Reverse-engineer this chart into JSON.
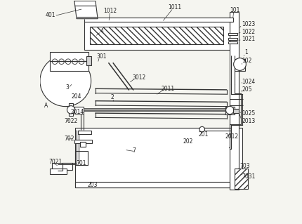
{
  "bg_color": "#f5f5f0",
  "line_color": "#333333",
  "label_color": "#222222",
  "fig_width": 4.3,
  "fig_height": 3.19
}
